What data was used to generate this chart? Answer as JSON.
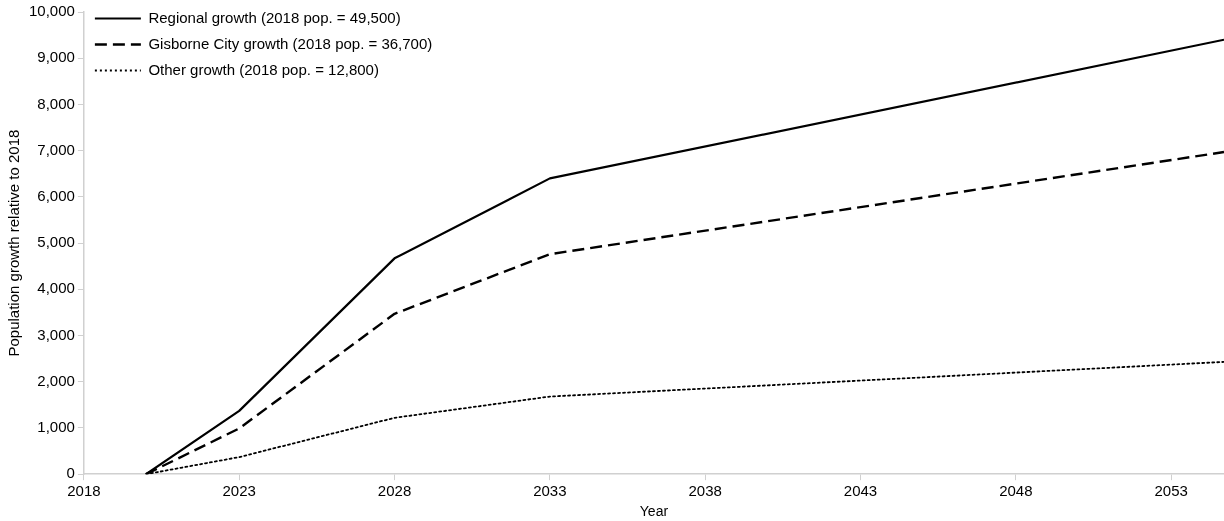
{
  "chart_data": {
    "type": "line",
    "xlabel": "Year",
    "ylabel": "Population growth relative to 2018",
    "x": [
      2020,
      2023,
      2028,
      2033,
      2054.7
    ],
    "series": [
      {
        "name": "Regional growth (2018 pop. = 49,500)",
        "color": "#000000",
        "line_style": "solid",
        "values": [
          0,
          1370,
          4670,
          6400,
          9400
        ]
      },
      {
        "name": "Gisborne City growth (2018 pop. = 36,700)",
        "color": "#000000",
        "line_style": "dashed",
        "values": [
          0,
          990,
          3470,
          4760,
          6970
        ]
      },
      {
        "name": "Other growth (2018 pop. = 12,800)",
        "color": "#000000",
        "line_style": "dotted",
        "values": [
          0,
          370,
          1220,
          1680,
          2430
        ]
      }
    ],
    "xlim": [
      2018,
      2054.7
    ],
    "xticks": [
      2018,
      2023,
      2028,
      2033,
      2038,
      2043,
      2048,
      2053
    ],
    "ylim": [
      0,
      10000
    ],
    "yticks": [
      0,
      {
        "value": 1000,
        "label": "1,000"
      },
      {
        "value": 2000,
        "label": "2,000"
      },
      {
        "value": 3000,
        "label": "3,000"
      },
      {
        "value": 4000,
        "label": "4,000"
      },
      {
        "value": 5000,
        "label": "5,000"
      },
      {
        "value": 6000,
        "label": "6,000"
      },
      {
        "value": 7000,
        "label": "7,000"
      },
      {
        "value": 8000,
        "label": "8,000"
      },
      {
        "value": 9000,
        "label": "9,000"
      },
      {
        "value": 10000,
        "label": "10,000"
      }
    ],
    "grid": false,
    "legend": "top left",
    "marker": "none"
  }
}
